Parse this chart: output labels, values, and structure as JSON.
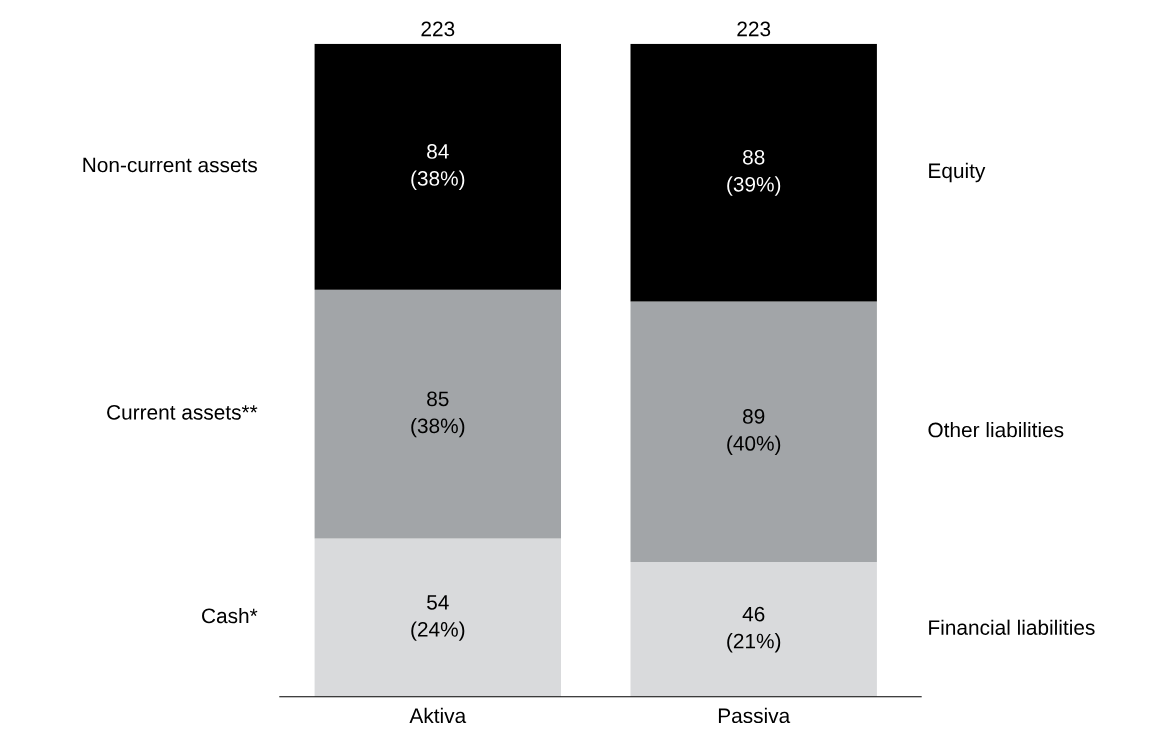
{
  "chart_data": {
    "type": "bar",
    "stacked": true,
    "categories": [
      "Aktiva",
      "Passiva"
    ],
    "series": [
      {
        "name": "Cash*",
        "color": "#d9dadc",
        "values": [
          54,
          null
        ],
        "value_labels": [
          "54\n(24%)",
          null
        ]
      },
      {
        "name": "Financial liabilities",
        "color": "#d9dadc",
        "values": [
          null,
          46
        ],
        "value_labels": [
          null,
          "46\n(21%)"
        ]
      },
      {
        "name": "Current assets**",
        "color": "#a2a5a8",
        "values": [
          85,
          null
        ],
        "value_labels": [
          "85\n(38%)",
          null
        ]
      },
      {
        "name": "Other liabilities",
        "color": "#a2a5a8",
        "values": [
          null,
          89
        ],
        "value_labels": [
          null,
          "89\n(40%)"
        ]
      },
      {
        "name": "Non-current assets",
        "color": "#000000",
        "values": [
          84,
          null
        ],
        "value_labels": [
          "84\n(38%)",
          null
        ]
      },
      {
        "name": "Equity",
        "color": "#000000",
        "values": [
          null,
          88
        ],
        "value_labels": [
          null,
          "88\n(39%)"
        ]
      }
    ],
    "totals": [
      "223",
      "223"
    ],
    "grid": false,
    "legend": false
  }
}
